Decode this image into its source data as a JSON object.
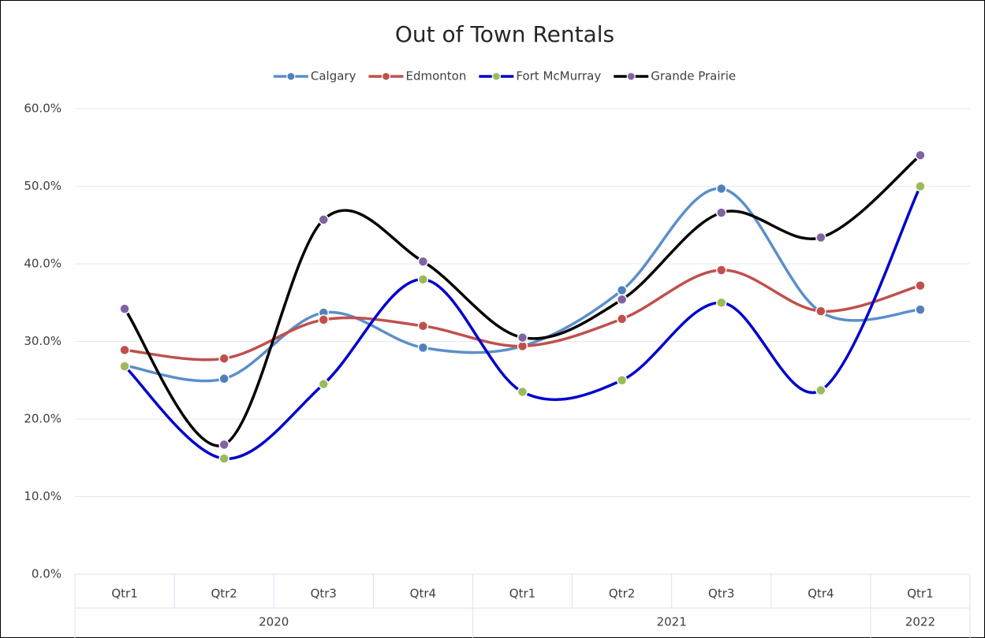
{
  "chart_data": {
    "type": "line",
    "title": "Out of Town Rentals",
    "categories": [
      "Qtr1",
      "Qtr2",
      "Qtr3",
      "Qtr4",
      "Qtr1",
      "Qtr2",
      "Qtr3",
      "Qtr4",
      "Qtr1"
    ],
    "category_groups": [
      {
        "label": "2020",
        "span": 4
      },
      {
        "label": "2021",
        "span": 4
      },
      {
        "label": "2022",
        "span": 1
      }
    ],
    "series": [
      {
        "name": "Calgary",
        "color": "#5b8fc9",
        "marker_color": "#4f81bd",
        "values": [
          26.9,
          25.2,
          33.7,
          29.2,
          29.4,
          36.6,
          49.7,
          33.8,
          34.1
        ]
      },
      {
        "name": "Edmonton",
        "color": "#c0504d",
        "marker_color": "#c0504d",
        "values": [
          28.9,
          27.8,
          32.8,
          32.0,
          29.4,
          32.9,
          39.2,
          33.9,
          37.2
        ]
      },
      {
        "name": "Fort McMurray",
        "color": "#0000cc",
        "marker_color": "#9bbb59",
        "values": [
          26.8,
          14.9,
          24.5,
          38.0,
          23.5,
          25.0,
          35.0,
          23.7,
          50.0
        ]
      },
      {
        "name": "Grande Prairie",
        "color": "#000000",
        "marker_color": "#8064a2",
        "values": [
          34.2,
          16.7,
          45.7,
          40.3,
          30.5,
          35.4,
          46.6,
          43.4,
          54.0
        ]
      }
    ],
    "ylim": [
      0,
      60
    ],
    "yticks": [
      {
        "value": 0,
        "label": "0.0%"
      },
      {
        "value": 10,
        "label": "10.0%"
      },
      {
        "value": 20,
        "label": "20.0%"
      },
      {
        "value": 30,
        "label": "30.0%"
      },
      {
        "value": 40,
        "label": "40.0%"
      },
      {
        "value": 50,
        "label": "50.0%"
      },
      {
        "value": 60,
        "label": "60.0%"
      }
    ],
    "grid": true,
    "smooth": true,
    "legend": "top"
  }
}
